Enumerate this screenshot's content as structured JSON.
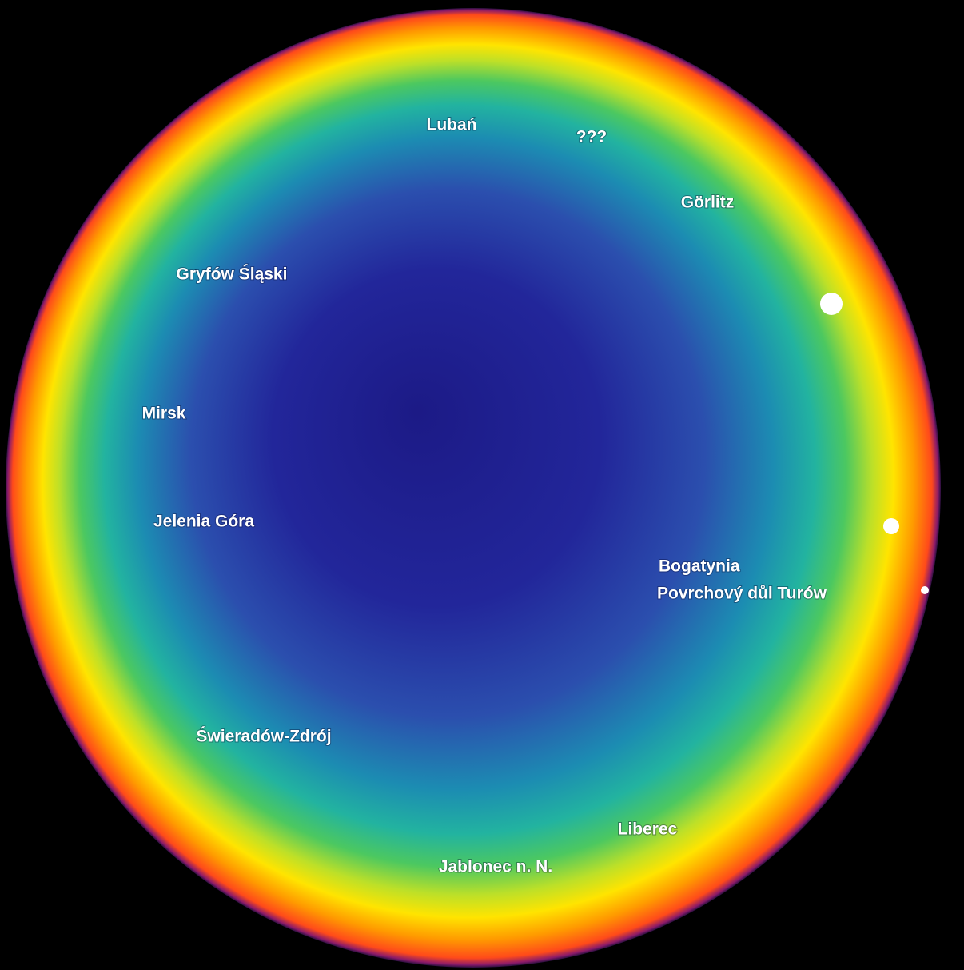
{
  "labels": [
    "Lubań",
    "???",
    "Görlitz",
    "Gryfów Śląski",
    "Mirsk",
    "Jelenia Góra",
    "Bogatynia",
    "Povrchový důl Turów",
    "Świeradów-Zdrój",
    "Liberec",
    "Jablonec n. N."
  ]
}
